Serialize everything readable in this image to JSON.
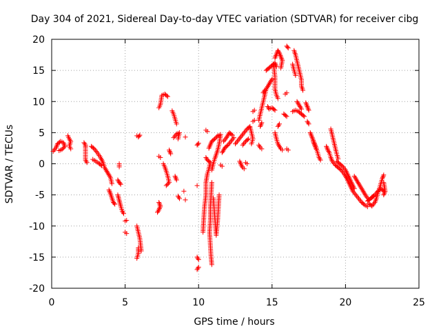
{
  "chart_data": {
    "type": "scatter",
    "title": "Day 304 of 2021, Sidereal Day-to-day VTEC variation (SDTVAR) for receiver cibg",
    "xlabel": "GPS time / hours",
    "ylabel": "SDTVAR / TECUs",
    "xlim": [
      0,
      25
    ],
    "ylim": [
      -20,
      20
    ],
    "xticks": [
      "0",
      "5",
      "10",
      "15",
      "20",
      "25"
    ],
    "yticks": [
      "20",
      "15",
      "10",
      "5",
      "0",
      "-5",
      "-10",
      "-15",
      "-20"
    ],
    "grid": true,
    "marker": "+",
    "color": "#ff0000",
    "segments": [
      [
        [
          0.1,
          2.0
        ],
        [
          0.3,
          2.6
        ],
        [
          0.4,
          3.2
        ],
        [
          0.6,
          3.6
        ],
        [
          0.8,
          3.4
        ],
        [
          0.9,
          2.8
        ],
        [
          0.7,
          2.3
        ],
        [
          0.5,
          2.1
        ]
      ],
      [
        [
          1.1,
          4.5
        ],
        [
          1.2,
          4.0
        ],
        [
          1.3,
          3.6
        ],
        [
          1.2,
          2.9
        ],
        [
          1.3,
          2.4
        ]
      ],
      [
        [
          2.2,
          3.4
        ],
        [
          2.3,
          3.0
        ],
        [
          2.3,
          2.6
        ],
        [
          2.3,
          0.6
        ],
        [
          2.4,
          0.2
        ]
      ],
      [
        [
          2.7,
          2.8
        ],
        [
          2.9,
          2.4
        ],
        [
          3.1,
          1.8
        ],
        [
          3.3,
          1.1
        ],
        [
          3.5,
          0.2
        ],
        [
          3.6,
          -0.6
        ],
        [
          3.8,
          -1.4
        ],
        [
          4.0,
          -2.2
        ],
        [
          4.1,
          -3.2
        ]
      ],
      [
        [
          2.8,
          0.7
        ],
        [
          3.0,
          0.4
        ],
        [
          3.2,
          0.1
        ],
        [
          3.4,
          -0.3
        ]
      ],
      [
        [
          3.9,
          -4.2
        ],
        [
          4.0,
          -4.8
        ],
        [
          4.1,
          -5.5
        ],
        [
          4.2,
          -6.2
        ],
        [
          4.3,
          -6.5
        ]
      ],
      [
        [
          4.5,
          -5.0
        ],
        [
          4.6,
          -5.9
        ],
        [
          4.7,
          -6.8
        ],
        [
          4.8,
          -7.6
        ],
        [
          4.9,
          -8.0
        ]
      ],
      [
        [
          4.5,
          -2.6
        ],
        [
          4.6,
          -3.0
        ],
        [
          4.7,
          -3.3
        ]
      ],
      [
        [
          4.6,
          0.0
        ],
        [
          4.6,
          -0.5
        ]
      ],
      [
        [
          5.0,
          -9.2
        ],
        [
          5.1,
          -9.1
        ]
      ],
      [
        [
          5.0,
          -11.0
        ],
        [
          5.1,
          -11.2
        ]
      ],
      [
        [
          5.8,
          -10.0
        ],
        [
          5.9,
          -11.0
        ],
        [
          6.0,
          -12.0
        ],
        [
          6.05,
          -13.0
        ],
        [
          6.1,
          -14.0
        ]
      ],
      [
        [
          5.9,
          -13.5
        ],
        [
          5.9,
          -14.4
        ],
        [
          5.8,
          -15.2
        ]
      ],
      [
        [
          5.8,
          4.5
        ],
        [
          5.9,
          4.3
        ],
        [
          6.0,
          4.6
        ]
      ],
      [
        [
          7.3,
          -6.2
        ],
        [
          7.4,
          -6.8
        ],
        [
          7.3,
          -7.4
        ],
        [
          7.2,
          -7.8
        ]
      ],
      [
        [
          7.3,
          9.0
        ],
        [
          7.4,
          9.5
        ],
        [
          7.5,
          11.0
        ],
        [
          7.7,
          11.2
        ],
        [
          7.9,
          10.8
        ]
      ],
      [
        [
          7.3,
          1.2
        ],
        [
          7.4,
          1.0
        ]
      ],
      [
        [
          7.6,
          0.0
        ],
        [
          7.7,
          -0.5
        ],
        [
          7.8,
          -1.2
        ],
        [
          7.9,
          -2.0
        ],
        [
          8.0,
          -3.0
        ],
        [
          7.8,
          -3.5
        ]
      ],
      [
        [
          8.0,
          2.2
        ],
        [
          8.1,
          1.6
        ]
      ],
      [
        [
          8.2,
          8.5
        ],
        [
          8.3,
          8.0
        ],
        [
          8.4,
          7.2
        ],
        [
          8.5,
          6.4
        ]
      ],
      [
        [
          8.3,
          4.2
        ],
        [
          8.5,
          4.8
        ],
        [
          8.7,
          5.0
        ],
        [
          8.6,
          4.0
        ]
      ],
      [
        [
          8.4,
          -2.0
        ],
        [
          8.5,
          -2.6
        ]
      ],
      [
        [
          8.6,
          -5.2
        ],
        [
          8.7,
          -5.6
        ]
      ],
      [
        [
          9.1,
          4.3
        ]
      ],
      [
        [
          9.0,
          -4.4
        ]
      ],
      [
        [
          9.1,
          -5.8
        ]
      ],
      [
        [
          9.9,
          3.0
        ],
        [
          10.0,
          3.3
        ]
      ],
      [
        [
          9.9,
          -3.5
        ]
      ],
      [
        [
          9.9,
          -15.0
        ],
        [
          10.0,
          -15.4
        ]
      ],
      [
        [
          10.0,
          -16.6
        ],
        [
          9.9,
          -17.0
        ]
      ],
      [
        [
          10.5,
          5.4
        ],
        [
          10.6,
          5.2
        ]
      ],
      [
        [
          10.5,
          1.0
        ],
        [
          10.6,
          0.6
        ],
        [
          10.8,
          0.2
        ],
        [
          10.7,
          -0.8
        ],
        [
          10.6,
          -1.6
        ],
        [
          10.5,
          -3.0
        ],
        [
          10.5,
          -5.0
        ],
        [
          10.4,
          -7.0
        ],
        [
          10.35,
          -9.0
        ],
        [
          10.3,
          -11.0
        ]
      ],
      [
        [
          10.9,
          -3.0
        ],
        [
          10.85,
          -5.0
        ],
        [
          10.8,
          -7.0
        ],
        [
          10.8,
          -9.0
        ],
        [
          10.75,
          -11.0
        ],
        [
          10.8,
          -13.0
        ],
        [
          10.85,
          -15.0
        ],
        [
          10.9,
          -16.2
        ]
      ],
      [
        [
          11.0,
          -5.5
        ],
        [
          11.05,
          -7.0
        ],
        [
          11.1,
          -8.5
        ],
        [
          11.15,
          -10.0
        ],
        [
          11.2,
          -11.5
        ],
        [
          11.3,
          -9.0
        ],
        [
          11.35,
          -7.0
        ],
        [
          11.4,
          -5.0
        ]
      ],
      [
        [
          10.7,
          2.5
        ],
        [
          10.9,
          3.6
        ],
        [
          11.1,
          4.0
        ],
        [
          11.3,
          4.5
        ],
        [
          11.5,
          4.7
        ],
        [
          11.4,
          3.2
        ],
        [
          11.3,
          2.2
        ],
        [
          11.1,
          0.8
        ],
        [
          11.0,
          0.0
        ],
        [
          10.9,
          -1.0
        ]
      ],
      [
        [
          11.6,
          1.8
        ],
        [
          11.8,
          2.6
        ],
        [
          12.0,
          3.0
        ],
        [
          12.2,
          3.6
        ],
        [
          12.4,
          4.2
        ]
      ],
      [
        [
          11.7,
          3.6
        ],
        [
          11.9,
          4.2
        ],
        [
          12.1,
          5.0
        ],
        [
          12.3,
          4.6
        ]
      ],
      [
        [
          11.5,
          -0.2
        ],
        [
          11.6,
          -0.4
        ]
      ],
      [
        [
          12.5,
          3.2
        ],
        [
          12.7,
          3.8
        ],
        [
          12.9,
          4.4
        ],
        [
          13.1,
          5.0
        ],
        [
          13.3,
          5.6
        ],
        [
          13.5,
          6.0
        ],
        [
          13.6,
          5.0
        ],
        [
          13.7,
          4.0
        ],
        [
          13.6,
          3.2
        ]
      ],
      [
        [
          13.0,
          3.0
        ],
        [
          13.2,
          3.6
        ],
        [
          13.4,
          4.0
        ]
      ],
      [
        [
          12.8,
          0.4
        ],
        [
          12.9,
          -0.2
        ],
        [
          13.0,
          -0.6
        ],
        [
          13.1,
          -0.8
        ]
      ],
      [
        [
          13.2,
          0.2
        ],
        [
          13.3,
          0.0
        ]
      ],
      [
        [
          13.7,
          8.4
        ],
        [
          13.8,
          8.6
        ]
      ],
      [
        [
          13.7,
          6.8
        ],
        [
          13.8,
          7.0
        ]
      ],
      [
        [
          14.1,
          7.0
        ],
        [
          14.2,
          8.0
        ],
        [
          14.3,
          9.0
        ],
        [
          14.4,
          10.0
        ],
        [
          14.5,
          11.0
        ],
        [
          14.6,
          12.0
        ],
        [
          14.8,
          12.8
        ],
        [
          15.0,
          13.6
        ]
      ],
      [
        [
          14.2,
          6.0
        ],
        [
          14.3,
          6.6
        ]
      ],
      [
        [
          14.1,
          3.0
        ],
        [
          14.2,
          2.6
        ],
        [
          14.3,
          2.4
        ]
      ],
      [
        [
          14.4,
          11.4
        ],
        [
          14.5,
          11.8
        ]
      ],
      [
        [
          14.6,
          15.0
        ],
        [
          14.8,
          15.4
        ],
        [
          15.0,
          15.8
        ],
        [
          15.2,
          16.2
        ],
        [
          15.3,
          15.6
        ]
      ],
      [
        [
          15.2,
          17.0
        ],
        [
          15.3,
          17.6
        ],
        [
          15.4,
          18.2
        ],
        [
          15.5,
          17.8
        ],
        [
          15.6,
          17.2
        ],
        [
          15.7,
          16.6
        ],
        [
          15.6,
          15.4
        ]
      ],
      [
        [
          15.1,
          16.0
        ],
        [
          15.2,
          14.0
        ],
        [
          15.2,
          12.0
        ],
        [
          15.3,
          11.0
        ],
        [
          15.4,
          10.5
        ]
      ],
      [
        [
          14.7,
          9.2
        ],
        [
          14.8,
          8.8
        ],
        [
          15.0,
          9.0
        ],
        [
          15.2,
          8.6
        ]
      ],
      [
        [
          15.2,
          5.0
        ],
        [
          15.3,
          4.0
        ],
        [
          15.4,
          3.2
        ],
        [
          15.5,
          2.8
        ],
        [
          15.6,
          2.4
        ],
        [
          15.7,
          2.2
        ]
      ],
      [
        [
          15.4,
          6.0
        ],
        [
          15.5,
          6.4
        ]
      ],
      [
        [
          16.0,
          18.9
        ],
        [
          16.1,
          18.6
        ]
      ],
      [
        [
          15.9,
          11.2
        ],
        [
          16.0,
          11.4
        ]
      ],
      [
        [
          15.8,
          8.0
        ],
        [
          16.0,
          7.6
        ]
      ],
      [
        [
          16.0,
          2.4
        ],
        [
          16.1,
          2.2
        ]
      ],
      [
        [
          16.5,
          18.2
        ],
        [
          16.6,
          17.5
        ],
        [
          16.7,
          16.5
        ],
        [
          16.8,
          15.5
        ],
        [
          16.9,
          14.5
        ],
        [
          17.0,
          13.5
        ],
        [
          17.0,
          12.5
        ],
        [
          17.1,
          11.8
        ]
      ],
      [
        [
          16.4,
          16.0
        ],
        [
          16.5,
          15.0
        ],
        [
          16.6,
          14.2
        ]
      ],
      [
        [
          16.7,
          10.0
        ],
        [
          16.8,
          9.6
        ],
        [
          16.9,
          9.2
        ],
        [
          17.0,
          8.8
        ]
      ],
      [
        [
          16.4,
          8.4
        ],
        [
          16.6,
          8.6
        ],
        [
          16.8,
          8.4
        ],
        [
          17.0,
          8.0
        ],
        [
          17.2,
          7.6
        ]
      ],
      [
        [
          17.3,
          9.8
        ],
        [
          17.4,
          9.2
        ],
        [
          17.5,
          8.6
        ]
      ],
      [
        [
          17.4,
          6.8
        ],
        [
          17.5,
          6.4
        ]
      ],
      [
        [
          17.6,
          5.0
        ],
        [
          17.7,
          4.4
        ],
        [
          17.8,
          3.8
        ],
        [
          17.9,
          3.2
        ],
        [
          18.0,
          2.6
        ],
        [
          18.1,
          1.8
        ],
        [
          18.2,
          1.0
        ],
        [
          18.3,
          0.6
        ]
      ],
      [
        [
          17.8,
          3.6
        ],
        [
          17.9,
          3.0
        ],
        [
          18.0,
          2.4
        ]
      ],
      [
        [
          18.7,
          2.8
        ],
        [
          18.8,
          2.2
        ],
        [
          18.9,
          1.8
        ],
        [
          19.0,
          1.0
        ],
        [
          19.1,
          0.4
        ],
        [
          19.3,
          -0.2
        ],
        [
          19.5,
          -0.6
        ],
        [
          19.7,
          -1.0
        ],
        [
          19.9,
          -1.6
        ],
        [
          20.1,
          -2.4
        ],
        [
          20.3,
          -3.4
        ],
        [
          20.5,
          -4.4
        ],
        [
          20.7,
          -5.0
        ],
        [
          20.9,
          -5.6
        ],
        [
          21.1,
          -6.2
        ],
        [
          21.3,
          -6.6
        ],
        [
          21.5,
          -6.9
        ]
      ],
      [
        [
          19.0,
          5.6
        ],
        [
          19.1,
          4.6
        ],
        [
          19.2,
          3.6
        ],
        [
          19.3,
          2.6
        ],
        [
          19.4,
          1.6
        ],
        [
          19.5,
          0.8
        ]
      ],
      [
        [
          19.4,
          0.4
        ],
        [
          19.6,
          0.0
        ],
        [
          19.8,
          -0.4
        ],
        [
          20.0,
          -1.0
        ],
        [
          20.2,
          -2.0
        ],
        [
          20.4,
          -3.0
        ],
        [
          20.6,
          -4.0
        ]
      ],
      [
        [
          20.6,
          -2.0
        ],
        [
          20.8,
          -2.8
        ],
        [
          21.0,
          -3.6
        ],
        [
          21.2,
          -4.4
        ],
        [
          21.4,
          -5.2
        ],
        [
          21.6,
          -5.8
        ]
      ],
      [
        [
          21.6,
          -6.4
        ],
        [
          21.8,
          -6.8
        ],
        [
          22.0,
          -6.2
        ],
        [
          22.1,
          -5.6
        ],
        [
          22.2,
          -4.8
        ],
        [
          22.3,
          -4.0
        ],
        [
          22.4,
          -3.2
        ],
        [
          22.5,
          -2.4
        ],
        [
          22.6,
          -1.8
        ]
      ],
      [
        [
          21.8,
          -5.4
        ],
        [
          22.0,
          -5.0
        ],
        [
          22.2,
          -4.4
        ],
        [
          22.4,
          -4.0
        ],
        [
          22.6,
          -4.4
        ]
      ],
      [
        [
          22.6,
          -3.0
        ],
        [
          22.7,
          -4.4
        ],
        [
          22.6,
          -5.0
        ]
      ],
      [
        [
          21.5,
          -6.0
        ],
        [
          21.7,
          -5.6
        ],
        [
          21.9,
          -5.2
        ]
      ]
    ]
  }
}
